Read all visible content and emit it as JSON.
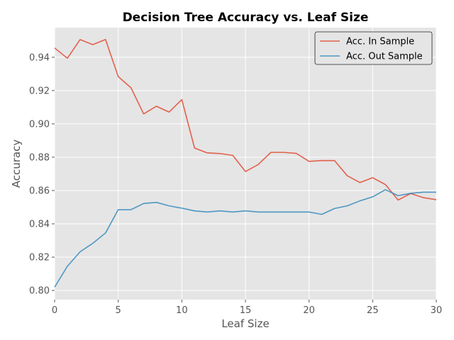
{
  "chart_data": {
    "type": "line",
    "title": "Decision Tree Accuracy vs. Leaf Size",
    "xlabel": "Leaf Size",
    "ylabel": "Accuracy",
    "xlim": [
      0,
      30
    ],
    "ylim": [
      0.7945,
      0.9578
    ],
    "xticks": [
      0,
      5,
      10,
      15,
      20,
      25,
      30
    ],
    "yticks": [
      0.8,
      0.82,
      0.84,
      0.86,
      0.88,
      0.9,
      0.92,
      0.94
    ],
    "grid": true,
    "legend_position": "top-right",
    "background_color": "#E5E5E5",
    "grid_color": "#FFFFFF",
    "x": [
      0,
      1,
      2,
      3,
      4,
      5,
      6,
      7,
      8,
      9,
      10,
      11,
      12,
      13,
      14,
      15,
      16,
      17,
      18,
      19,
      20,
      21,
      22,
      23,
      24,
      25,
      26,
      27,
      28,
      29,
      30
    ],
    "series": [
      {
        "name": "Acc. In Sample",
        "color": "#E24A33",
        "values": [
          0.9456,
          0.9394,
          0.9506,
          0.9476,
          0.9507,
          0.9284,
          0.9217,
          0.906,
          0.9106,
          0.9071,
          0.9146,
          0.8855,
          0.8826,
          0.8822,
          0.8811,
          0.8714,
          0.8756,
          0.8829,
          0.8829,
          0.8823,
          0.8775,
          0.878,
          0.878,
          0.8689,
          0.8648,
          0.8677,
          0.8636,
          0.8543,
          0.8582,
          0.8557,
          0.8545
        ]
      },
      {
        "name": "Acc. Out Sample",
        "color": "#348ABD",
        "values": [
          0.802,
          0.8145,
          0.8232,
          0.8283,
          0.8345,
          0.8485,
          0.8485,
          0.8522,
          0.8529,
          0.8508,
          0.8494,
          0.8478,
          0.8471,
          0.8478,
          0.8471,
          0.8478,
          0.8471,
          0.8471,
          0.8471,
          0.8471,
          0.8471,
          0.8457,
          0.8492,
          0.8508,
          0.8538,
          0.8562,
          0.8605,
          0.8569,
          0.8583,
          0.859,
          0.859
        ]
      }
    ]
  }
}
